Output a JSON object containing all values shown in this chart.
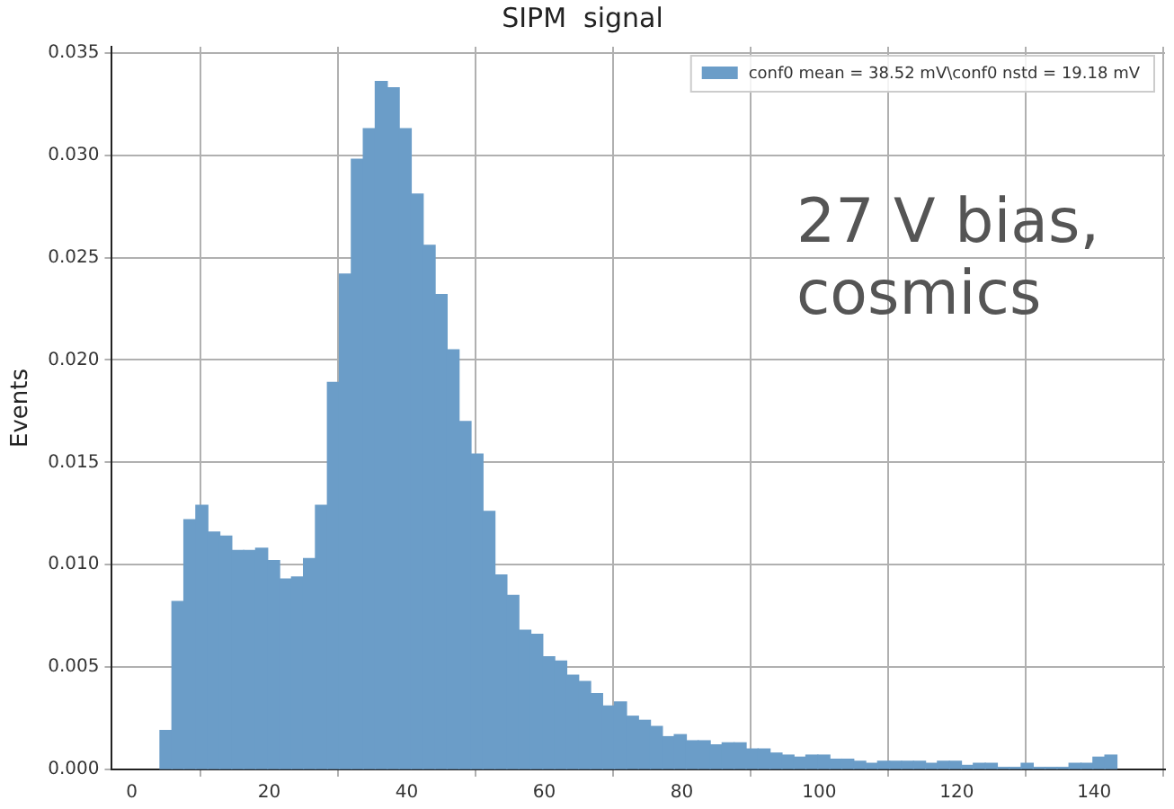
{
  "chart_data": {
    "type": "histogram",
    "title": "SIPM  signal",
    "ylabel": "Events",
    "annotations": [
      "27 V bias, cosmics"
    ],
    "bins": [
      4.1,
      5.84,
      7.58,
      9.32,
      11.06,
      12.8,
      14.54,
      16.28,
      18.02,
      19.76,
      21.5,
      23.24,
      24.98,
      26.72,
      28.46,
      30.2,
      31.94,
      33.68,
      35.42,
      37.16,
      38.9,
      40.64,
      42.38,
      44.12,
      45.86,
      47.6,
      49.34,
      51.08,
      52.82,
      54.56,
      56.3,
      58.04,
      59.78,
      61.52,
      63.26,
      65.0,
      66.74,
      68.48,
      70.22,
      71.96,
      73.7,
      75.44,
      77.18,
      78.92,
      80.66,
      82.4,
      84.14,
      85.88,
      87.62,
      89.36,
      91.1,
      92.84,
      94.58,
      96.32,
      98.06,
      99.8,
      101.54,
      103.28,
      105.02,
      106.76,
      108.5,
      110.24,
      111.98,
      113.72,
      115.46,
      117.2,
      118.94,
      120.68,
      122.42,
      124.16,
      125.9,
      127.64,
      129.38,
      131.12,
      132.86,
      134.6,
      136.34,
      138.08,
      139.82,
      141.56,
      143.3
    ],
    "series": [
      {
        "name": "conf0 mean = 38.52 mV\\conf0 nstd = 19.18 mV",
        "color": "#6b9dc8",
        "values": [
          0.0019,
          0.0082,
          0.0122,
          0.0129,
          0.0116,
          0.0114,
          0.0107,
          0.0107,
          0.0108,
          0.0102,
          0.0093,
          0.0094,
          0.0103,
          0.0129,
          0.0189,
          0.0242,
          0.0298,
          0.0313,
          0.0336,
          0.0333,
          0.0313,
          0.0281,
          0.0256,
          0.0232,
          0.0205,
          0.017,
          0.0154,
          0.0126,
          0.0095,
          0.0085,
          0.0068,
          0.0066,
          0.0055,
          0.0053,
          0.0046,
          0.0043,
          0.0037,
          0.0031,
          0.0033,
          0.0026,
          0.0024,
          0.0021,
          0.0016,
          0.0017,
          0.0014,
          0.0014,
          0.0012,
          0.0013,
          0.0013,
          0.001,
          0.001,
          0.0008,
          0.0007,
          0.0006,
          0.0007,
          0.0007,
          0.0005,
          0.0005,
          0.0004,
          0.0003,
          0.0004,
          0.0004,
          0.0004,
          0.0004,
          0.0003,
          0.0004,
          0.0004,
          0.0002,
          0.0003,
          0.0003,
          0.0001,
          0.0001,
          0.0003,
          0.0001,
          0.0001,
          0.0001,
          0.0003,
          0.0003,
          0.0006,
          0.0007
        ]
      }
    ],
    "xlim": [
      -2.9,
      150.3
    ],
    "xticks": [
      0,
      20,
      40,
      60,
      80,
      100,
      120,
      140
    ],
    "ylim": [
      0,
      0.0353
    ],
    "yticks": [
      {
        "value": 0,
        "label": "0.000"
      },
      {
        "value": 0.005,
        "label": "0.005"
      },
      {
        "value": 0.01,
        "label": "0.010"
      },
      {
        "value": 0.015,
        "label": "0.015"
      },
      {
        "value": 0.02,
        "label": "0.020"
      },
      {
        "value": 0.025,
        "label": "0.025"
      },
      {
        "value": 0.03,
        "label": "0.030"
      },
      {
        "value": 0.035,
        "label": "0.035"
      }
    ],
    "grid": true,
    "legend": "top right"
  }
}
